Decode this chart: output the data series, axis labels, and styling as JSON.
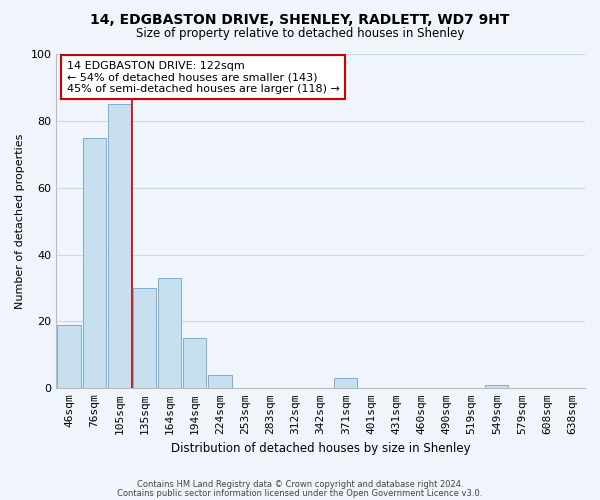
{
  "title_line1": "14, EDGBASTON DRIVE, SHENLEY, RADLETT, WD7 9HT",
  "title_line2": "Size of property relative to detached houses in Shenley",
  "xlabel": "Distribution of detached houses by size in Shenley",
  "ylabel": "Number of detached properties",
  "bar_labels": [
    "46sqm",
    "76sqm",
    "105sqm",
    "135sqm",
    "164sqm",
    "194sqm",
    "224sqm",
    "253sqm",
    "283sqm",
    "312sqm",
    "342sqm",
    "371sqm",
    "401sqm",
    "431sqm",
    "460sqm",
    "490sqm",
    "519sqm",
    "549sqm",
    "579sqm",
    "608sqm",
    "638sqm"
  ],
  "bar_values": [
    19,
    75,
    85,
    30,
    33,
    15,
    4,
    0,
    0,
    0,
    0,
    3,
    0,
    0,
    0,
    0,
    0,
    1,
    0,
    0,
    0
  ],
  "bar_color": "#c8dff0",
  "bar_edge_color": "#7aaed4",
  "grid_color": "#c8d8e8",
  "annotation_line1": "14 EDGBASTON DRIVE: 122sqm",
  "annotation_line2": "← 54% of detached houses are smaller (143)",
  "annotation_line3": "45% of semi-detached houses are larger (118) →",
  "vline_x": 2.5,
  "vline_color": "#cc0000",
  "ylim": [
    0,
    100
  ],
  "footnote_line1": "Contains HM Land Registry data © Crown copyright and database right 2024.",
  "footnote_line2": "Contains public sector information licensed under the Open Government Licence v3.0.",
  "bg_color": "#f0f5fb"
}
